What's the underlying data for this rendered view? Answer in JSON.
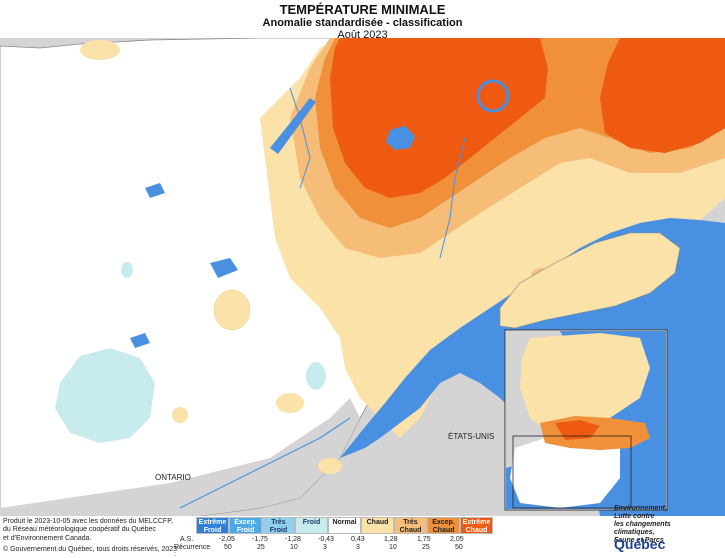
{
  "header": {
    "title": "TEMPÉRATURE MINIMALE",
    "subtitle": "Anomalie standardisée - classification",
    "period": "Août 2023"
  },
  "map_labels": {
    "ontario": "ONTARIO",
    "etats_unis": "ÉTATS-UNIS"
  },
  "legend": {
    "classes": [
      {
        "label": "Extrême Froid",
        "color": "#2e7fd9",
        "text_color": "#ffffff"
      },
      {
        "label": "Excep. Froid",
        "color": "#4aa8e6",
        "text_color": "#ffffff"
      },
      {
        "label": "Très Froid",
        "color": "#8fd1ee",
        "text_color": "#1a3a66"
      },
      {
        "label": "Froid",
        "color": "#c8ebee",
        "text_color": "#1a3a66"
      },
      {
        "label": "Normal",
        "color": "#ffffff",
        "text_color": "#222222"
      },
      {
        "label": "Chaud",
        "color": "#fbe2a8",
        "text_color": "#222222"
      },
      {
        "label": "Très Chaud",
        "color": "#f5bd78",
        "text_color": "#222222"
      },
      {
        "label": "Excep. Chaud",
        "color": "#f0913a",
        "text_color": "#222222"
      },
      {
        "label": "Extrême Chaud",
        "color": "#ee5a12",
        "text_color": "#ffffff"
      }
    ],
    "as_label": "A.S. :",
    "recurrence_label": "Récurrence :",
    "thresholds": [
      "-2,05",
      "-1,75",
      "-1,28",
      "-0,43",
      "0,43",
      "1,28",
      "1,75",
      "2,05"
    ],
    "recurrence_values": [
      "50",
      "25",
      "10",
      "3",
      "3",
      "10",
      "25",
      "50"
    ]
  },
  "credits": {
    "line1": "Produit le 2023-10-05 avec les données du MELCCFP,",
    "line2": "du Réseau météorologique coopératif du Québec",
    "line3": "et d'Environnement Canada.",
    "line4": "© Gouvernement du Québec, tous droits réservés, 2023"
  },
  "ministry": {
    "line1": "Environnement,",
    "line2": "Lutte contre",
    "line3": "les changements",
    "line4": "climatiques,",
    "line5": "Faune et Parcs",
    "logo": "Québec"
  },
  "colors": {
    "water": "#4a90e2",
    "land_outside": "#d4d4d4",
    "normal": "#ffffff",
    "chaud": "#fbe2a8",
    "tres_chaud": "#f5bd78",
    "excep_chaud": "#f0913a",
    "extreme_chaud": "#ee5a12",
    "froid": "#c8ebee"
  }
}
